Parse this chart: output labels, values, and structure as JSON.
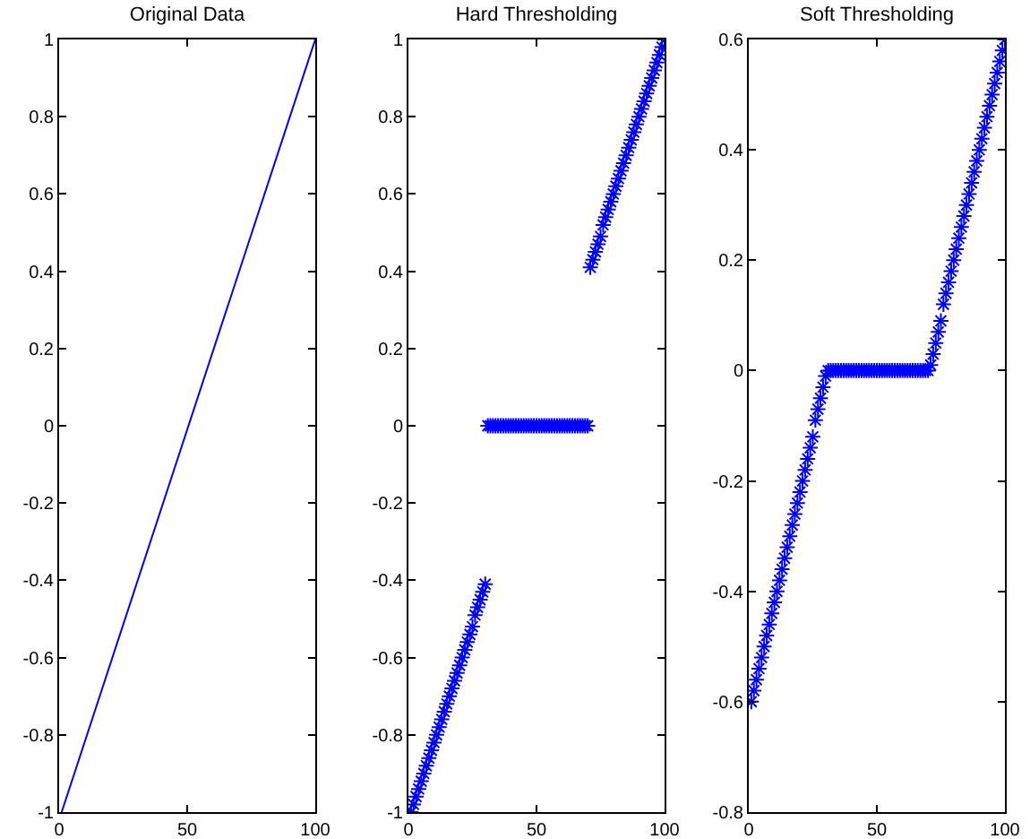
{
  "chart_data": [
    {
      "type": "line",
      "title": "Original Data",
      "x": [
        1,
        100
      ],
      "values": [
        -1,
        1
      ],
      "color": "#0000ff",
      "marker": "none",
      "xlim": [
        0,
        100
      ],
      "xticks": [
        0,
        50,
        100
      ],
      "ylim": [
        -1,
        1
      ],
      "yticks": [
        -1,
        -0.8,
        -0.6,
        -0.4,
        -0.2,
        0,
        0.2,
        0.4,
        0.6,
        0.8,
        1
      ]
    },
    {
      "type": "scatter",
      "title": "Hard Thresholding",
      "x": [
        1,
        2,
        3,
        4,
        5,
        6,
        7,
        8,
        9,
        10,
        11,
        12,
        13,
        14,
        15,
        16,
        17,
        18,
        19,
        20,
        21,
        22,
        23,
        24,
        25,
        26,
        27,
        28,
        29,
        30,
        31,
        32,
        33,
        34,
        35,
        36,
        37,
        38,
        39,
        40,
        41,
        42,
        43,
        44,
        45,
        46,
        47,
        48,
        49,
        50,
        51,
        52,
        53,
        54,
        55,
        56,
        57,
        58,
        59,
        60,
        61,
        62,
        63,
        64,
        65,
        66,
        67,
        68,
        69,
        70,
        71,
        72,
        73,
        74,
        75,
        76,
        77,
        78,
        79,
        80,
        81,
        82,
        83,
        84,
        85,
        86,
        87,
        88,
        89,
        90,
        91,
        92,
        93,
        94,
        95,
        96,
        97,
        98,
        99,
        100
      ],
      "values": [
        -1,
        -0.98,
        -0.96,
        -0.94,
        -0.92,
        -0.9,
        -0.88,
        -0.86,
        -0.84,
        -0.82,
        -0.8,
        -0.78,
        -0.76,
        -0.74,
        -0.72,
        -0.7,
        -0.68,
        -0.66,
        -0.64,
        -0.62,
        -0.6,
        -0.58,
        -0.56,
        -0.54,
        -0.52,
        -0.49,
        -0.47,
        -0.45,
        -0.43,
        -0.41,
        0,
        0,
        0,
        0,
        0,
        0,
        0,
        0,
        0,
        0,
        0,
        0,
        0,
        0,
        0,
        0,
        0,
        0,
        0,
        0,
        0,
        0,
        0,
        0,
        0,
        0,
        0,
        0,
        0,
        0,
        0,
        0,
        0,
        0,
        0,
        0,
        0,
        0,
        0,
        0,
        0.41,
        0.43,
        0.45,
        0.47,
        0.49,
        0.52,
        0.54,
        0.56,
        0.58,
        0.6,
        0.62,
        0.64,
        0.66,
        0.68,
        0.7,
        0.72,
        0.74,
        0.76,
        0.78,
        0.8,
        0.82,
        0.84,
        0.86,
        0.88,
        0.9,
        0.92,
        0.94,
        0.96,
        0.98,
        1
      ],
      "color": "#0000ff",
      "marker": "cross",
      "xlim": [
        0,
        100
      ],
      "xticks": [
        0,
        50,
        100
      ],
      "ylim": [
        -1,
        1
      ],
      "yticks": [
        -1,
        -0.8,
        -0.6,
        -0.4,
        -0.2,
        0,
        0.2,
        0.4,
        0.6,
        0.8,
        1
      ]
    },
    {
      "type": "scatter",
      "title": "Soft Thresholding",
      "x": [
        1,
        2,
        3,
        4,
        5,
        6,
        7,
        8,
        9,
        10,
        11,
        12,
        13,
        14,
        15,
        16,
        17,
        18,
        19,
        20,
        21,
        22,
        23,
        24,
        25,
        26,
        27,
        28,
        29,
        30,
        31,
        32,
        33,
        34,
        35,
        36,
        37,
        38,
        39,
        40,
        41,
        42,
        43,
        44,
        45,
        46,
        47,
        48,
        49,
        50,
        51,
        52,
        53,
        54,
        55,
        56,
        57,
        58,
        59,
        60,
        61,
        62,
        63,
        64,
        65,
        66,
        67,
        68,
        69,
        70,
        71,
        72,
        73,
        74,
        75,
        76,
        77,
        78,
        79,
        80,
        81,
        82,
        83,
        84,
        85,
        86,
        87,
        88,
        89,
        90,
        91,
        92,
        93,
        94,
        95,
        96,
        97,
        98,
        99,
        100
      ],
      "values": [
        -0.6,
        -0.58,
        -0.56,
        -0.54,
        -0.52,
        -0.5,
        -0.48,
        -0.46,
        -0.44,
        -0.42,
        -0.4,
        -0.38,
        -0.36,
        -0.34,
        -0.32,
        -0.3,
        -0.28,
        -0.26,
        -0.24,
        -0.22,
        -0.2,
        -0.18,
        -0.16,
        -0.14,
        -0.12,
        -0.09,
        -0.07,
        -0.05,
        -0.03,
        -0.01,
        0,
        0,
        0,
        0,
        0,
        0,
        0,
        0,
        0,
        0,
        0,
        0,
        0,
        0,
        0,
        0,
        0,
        0,
        0,
        0,
        0,
        0,
        0,
        0,
        0,
        0,
        0,
        0,
        0,
        0,
        0,
        0,
        0,
        0,
        0,
        0,
        0,
        0,
        0,
        0,
        0.01,
        0.03,
        0.05,
        0.07,
        0.09,
        0.12,
        0.14,
        0.16,
        0.18,
        0.2,
        0.22,
        0.24,
        0.26,
        0.28,
        0.3,
        0.32,
        0.34,
        0.36,
        0.38,
        0.4,
        0.42,
        0.44,
        0.46,
        0.48,
        0.5,
        0.52,
        0.54,
        0.56,
        0.58,
        0.6
      ],
      "color": "#0000ff",
      "marker": "cross",
      "xlim": [
        0,
        100
      ],
      "xticks": [
        0,
        50,
        100
      ],
      "ylim": [
        -0.8,
        0.6
      ],
      "yticks": [
        -0.8,
        -0.6,
        -0.4,
        -0.2,
        0,
        0.2,
        0.4,
        0.6
      ]
    }
  ]
}
